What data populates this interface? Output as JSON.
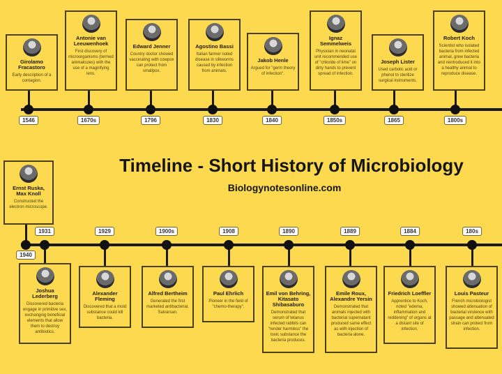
{
  "title": "Timeline - Short History of Microbiology",
  "subtitle": "Biologynotesonline.com",
  "colors": {
    "background": "#fcd94f",
    "line": "#1a1a1a",
    "card_border": "#4a3f10"
  },
  "top_events": [
    {
      "year": "1546",
      "name": "Girolamo Fracastoro",
      "desc": "Early description of a contagion."
    },
    {
      "year": "1670s",
      "name": "Antonie van Leeuwenhoek",
      "desc": "First discovery of microorganisms (termed animalcules) with the use of a magnifying lens."
    },
    {
      "year": "1796",
      "name": "Edward Jenner",
      "desc": "Country doctor showed vaccinating with cowpox can protect from smallpox."
    },
    {
      "year": "1830",
      "name": "Agostino Bassi",
      "desc": "Italian farmer noted disease in silkworms caused by infection from animals."
    },
    {
      "year": "1840",
      "name": "Jakob Henle",
      "desc": "Argued for \"germ theory of infection\"."
    },
    {
      "year": "1850s",
      "name": "Ignaz Semmelweis",
      "desc": "Physician in neonatal unit recommended use of \"chloride of lime\" on dirty hands to prevent spread of infection."
    },
    {
      "year": "1865",
      "name": "Joseph Lister",
      "desc": "Used carbolic acid or phenol to sterilize surgical instruments."
    },
    {
      "year": "1800s",
      "name": "Robert Koch",
      "desc": "Scientist who isolated bacteria from infected animal, grew bacteria and reintroduced it into a healthy animal to reproduce disease."
    }
  ],
  "ruska_event": {
    "year": "1940",
    "name": "Ernst Ruska, Max Knoll",
    "desc": "Constructed the electron microscope."
  },
  "bottom_events": [
    {
      "year": "1931",
      "name": "Joshua Lederberg",
      "desc": "Discovered bacteria engage in primitive sex, exchanging beneficial elements that allow them to destroy antibiotics."
    },
    {
      "year": "1929",
      "name": "Alexander Fleming",
      "desc": "Discovered that a mold substance could kill bacteria."
    },
    {
      "year": "1900s",
      "name": "Alfred Bertheim",
      "desc": "Generated the first marketed antibacterial, Salvarsan."
    },
    {
      "year": "1908",
      "name": "Paul Ehrlich",
      "desc": "Pioneer in the field of \"chemo-therapy\"."
    },
    {
      "year": "1890",
      "name": "Emil von Behring, Kitasato Shibasaburo",
      "desc": "Demonstrated that serum of tetanus infected rabbits can \"render harmless\" the toxic substance the bacteria produces."
    },
    {
      "year": "1889",
      "name": "Emile Roux, Alexandre Yersin",
      "desc": "Demonstrated that animals injected with bacterial supernatant produced same effect as with injection of bacteria alone."
    },
    {
      "year": "1884",
      "name": "Friedrich Loeffler",
      "desc": "Apprentice to Koch, noted \"edema, inflammation and reddening\" of organs at a distant site of infection."
    },
    {
      "year": "180s",
      "name": "Louis Pasteur",
      "desc": "French microbiologist showed attenuation of bacterial virulence with passage and attenuated strain can protect from infection."
    }
  ]
}
